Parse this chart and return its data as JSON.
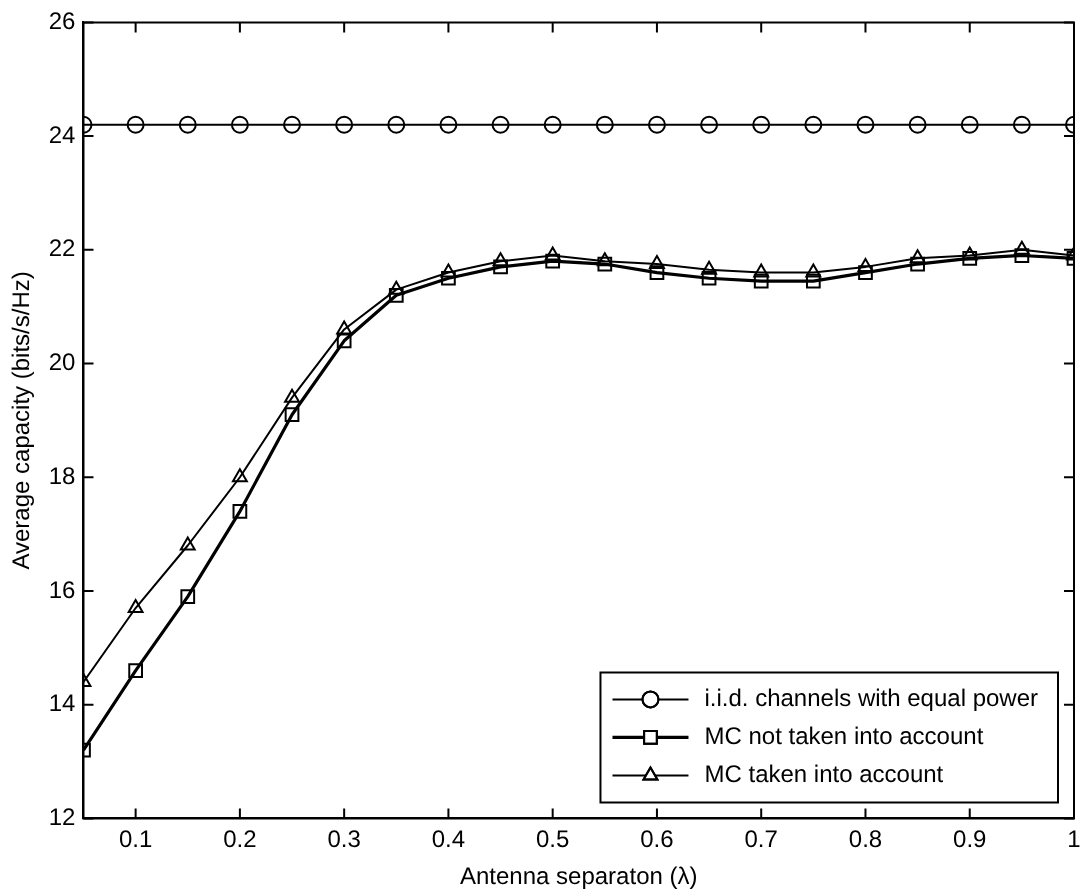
{
  "chart_data": {
    "type": "line",
    "xlabel": "Antenna separaton (λ)",
    "ylabel": "Average capacity (bits/s/Hz)",
    "x": [
      0.05,
      0.1,
      0.15,
      0.2,
      0.25,
      0.3,
      0.35,
      0.4,
      0.45,
      0.5,
      0.55,
      0.6,
      0.65,
      0.7,
      0.75,
      0.8,
      0.85,
      0.9,
      0.95,
      1.0
    ],
    "xlim": [
      0.05,
      1
    ],
    "xticks": [
      0.1,
      0.2,
      0.3,
      0.4,
      0.5,
      0.6,
      0.7,
      0.8,
      0.9,
      1
    ],
    "ylim": [
      12,
      26
    ],
    "yticks": [
      12,
      14,
      16,
      18,
      20,
      22,
      24,
      26
    ],
    "grid": false,
    "legend": "bottom right",
    "line_style": "solid",
    "series": [
      {
        "name": "i.i.d. channels with equal power",
        "color": "#000000",
        "marker": "circle",
        "values": [
          24.2,
          24.2,
          24.2,
          24.2,
          24.2,
          24.2,
          24.2,
          24.2,
          24.2,
          24.2,
          24.2,
          24.2,
          24.2,
          24.2,
          24.2,
          24.2,
          24.2,
          24.2,
          24.2,
          24.2
        ]
      },
      {
        "name": "MC not taken into account",
        "color": "#000000",
        "marker": "square",
        "values": [
          13.2,
          14.6,
          15.9,
          17.4,
          19.1,
          20.4,
          21.2,
          21.5,
          21.7,
          21.8,
          21.75,
          21.6,
          21.5,
          21.45,
          21.45,
          21.6,
          21.75,
          21.85,
          21.9,
          21.85
        ]
      },
      {
        "name": "MC taken into account",
        "color": "#000000",
        "marker": "triangle",
        "values": [
          14.4,
          15.7,
          16.8,
          18.0,
          19.4,
          20.6,
          21.3,
          21.6,
          21.8,
          21.9,
          21.8,
          21.75,
          21.65,
          21.6,
          21.6,
          21.7,
          21.85,
          21.9,
          22.0,
          21.9
        ]
      }
    ]
  }
}
